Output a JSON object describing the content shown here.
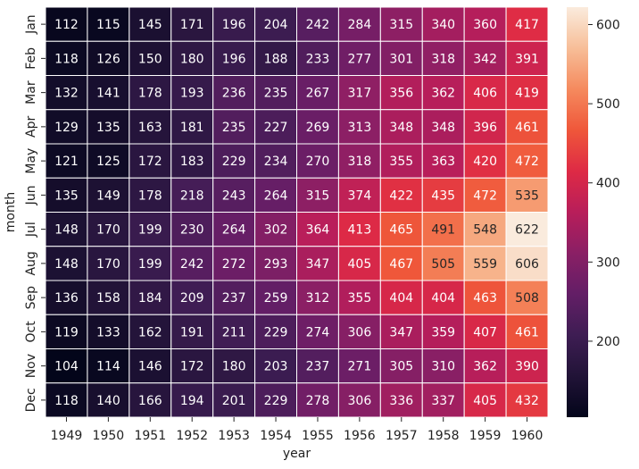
{
  "chart_data": {
    "type": "heatmap",
    "title": "",
    "xlabel": "year",
    "ylabel": "month",
    "x_categories": [
      "1949",
      "1950",
      "1951",
      "1952",
      "1953",
      "1954",
      "1955",
      "1956",
      "1957",
      "1958",
      "1959",
      "1960"
    ],
    "y_categories": [
      "Jan",
      "Feb",
      "Mar",
      "Apr",
      "May",
      "Jun",
      "Jul",
      "Aug",
      "Sep",
      "Oct",
      "Nov",
      "Dec"
    ],
    "values": [
      [
        112,
        115,
        145,
        171,
        196,
        204,
        242,
        284,
        315,
        340,
        360,
        417
      ],
      [
        118,
        126,
        150,
        180,
        196,
        188,
        233,
        277,
        301,
        318,
        342,
        391
      ],
      [
        132,
        141,
        178,
        193,
        236,
        235,
        267,
        317,
        356,
        362,
        406,
        419
      ],
      [
        129,
        135,
        163,
        181,
        235,
        227,
        269,
        313,
        348,
        348,
        396,
        461
      ],
      [
        121,
        125,
        172,
        183,
        229,
        234,
        270,
        318,
        355,
        363,
        420,
        472
      ],
      [
        135,
        149,
        178,
        218,
        243,
        264,
        315,
        374,
        422,
        435,
        472,
        535
      ],
      [
        148,
        170,
        199,
        230,
        264,
        302,
        364,
        413,
        465,
        491,
        548,
        622
      ],
      [
        148,
        170,
        199,
        242,
        272,
        293,
        347,
        405,
        467,
        505,
        559,
        606
      ],
      [
        136,
        158,
        184,
        209,
        237,
        259,
        312,
        355,
        404,
        404,
        463,
        508
      ],
      [
        119,
        133,
        162,
        191,
        211,
        229,
        274,
        306,
        347,
        359,
        407,
        461
      ],
      [
        104,
        114,
        146,
        172,
        180,
        203,
        237,
        271,
        305,
        310,
        362,
        390
      ],
      [
        118,
        140,
        166,
        194,
        201,
        229,
        278,
        306,
        336,
        337,
        405,
        432
      ]
    ],
    "colorbar": {
      "min": 104,
      "max": 622,
      "ticks": [
        200,
        300,
        400,
        500,
        600
      ],
      "colormap": "rocket"
    },
    "annotations": true,
    "legend": "colorbar-right"
  }
}
